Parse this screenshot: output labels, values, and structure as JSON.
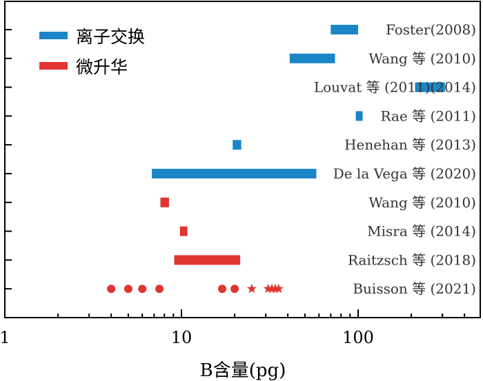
{
  "chart_data": {
    "type": "range_bar",
    "xscale": "log",
    "xlim": [
      1,
      380
    ],
    "xlabel": "B含量(pg)",
    "x_tick_labels": [
      "1",
      "10",
      "100"
    ],
    "x_ticks": [
      1,
      10,
      100
    ],
    "legend": {
      "position": "top-left",
      "entries": [
        {
          "label": "离子交换",
          "color": "#1a86c7"
        },
        {
          "label": "微升华",
          "color": "#e03530"
        }
      ]
    },
    "rows": [
      {
        "label": "Foster(2008)",
        "method": "离子交换",
        "ranges": [
          [
            70,
            100
          ]
        ]
      },
      {
        "label": "Wang 等 (2010)",
        "method": "离子交换",
        "ranges": [
          [
            41,
            74
          ]
        ]
      },
      {
        "label": "Louvat 等 (2011)(2014)",
        "method": "离子交换",
        "ranges": [
          [
            210,
            310
          ]
        ]
      },
      {
        "label": "Rae 等 (2011)",
        "method": "离子交换",
        "ranges": [
          [
            97,
            106
          ]
        ]
      },
      {
        "label": "Henehan 等 (2013)",
        "method": "离子交换",
        "ranges": [
          [
            19.5,
            21.8
          ]
        ]
      },
      {
        "label": "De la Vega 等 (2020)",
        "method": "离子交换",
        "ranges": [
          [
            6.8,
            58
          ]
        ]
      },
      {
        "label": "Wang 等 (2010)",
        "method": "微升华",
        "ranges": [
          [
            7.6,
            8.5
          ]
        ]
      },
      {
        "label": "Misra  等 (2014)",
        "method": "微升华",
        "ranges": [
          [
            9.8,
            10.8
          ]
        ]
      },
      {
        "label": "Raitzsch 等 (2018)",
        "method": "微升华",
        "ranges": [
          [
            9.1,
            21.5
          ]
        ]
      },
      {
        "label": "Buisson 等 (2021)",
        "method": "微升华",
        "points_circle": [
          4.0,
          5.0,
          6.0,
          7.5,
          17.0,
          20.0
        ],
        "points_star": [
          25.0,
          31.0,
          32.5,
          34.0,
          35.5
        ]
      }
    ]
  }
}
